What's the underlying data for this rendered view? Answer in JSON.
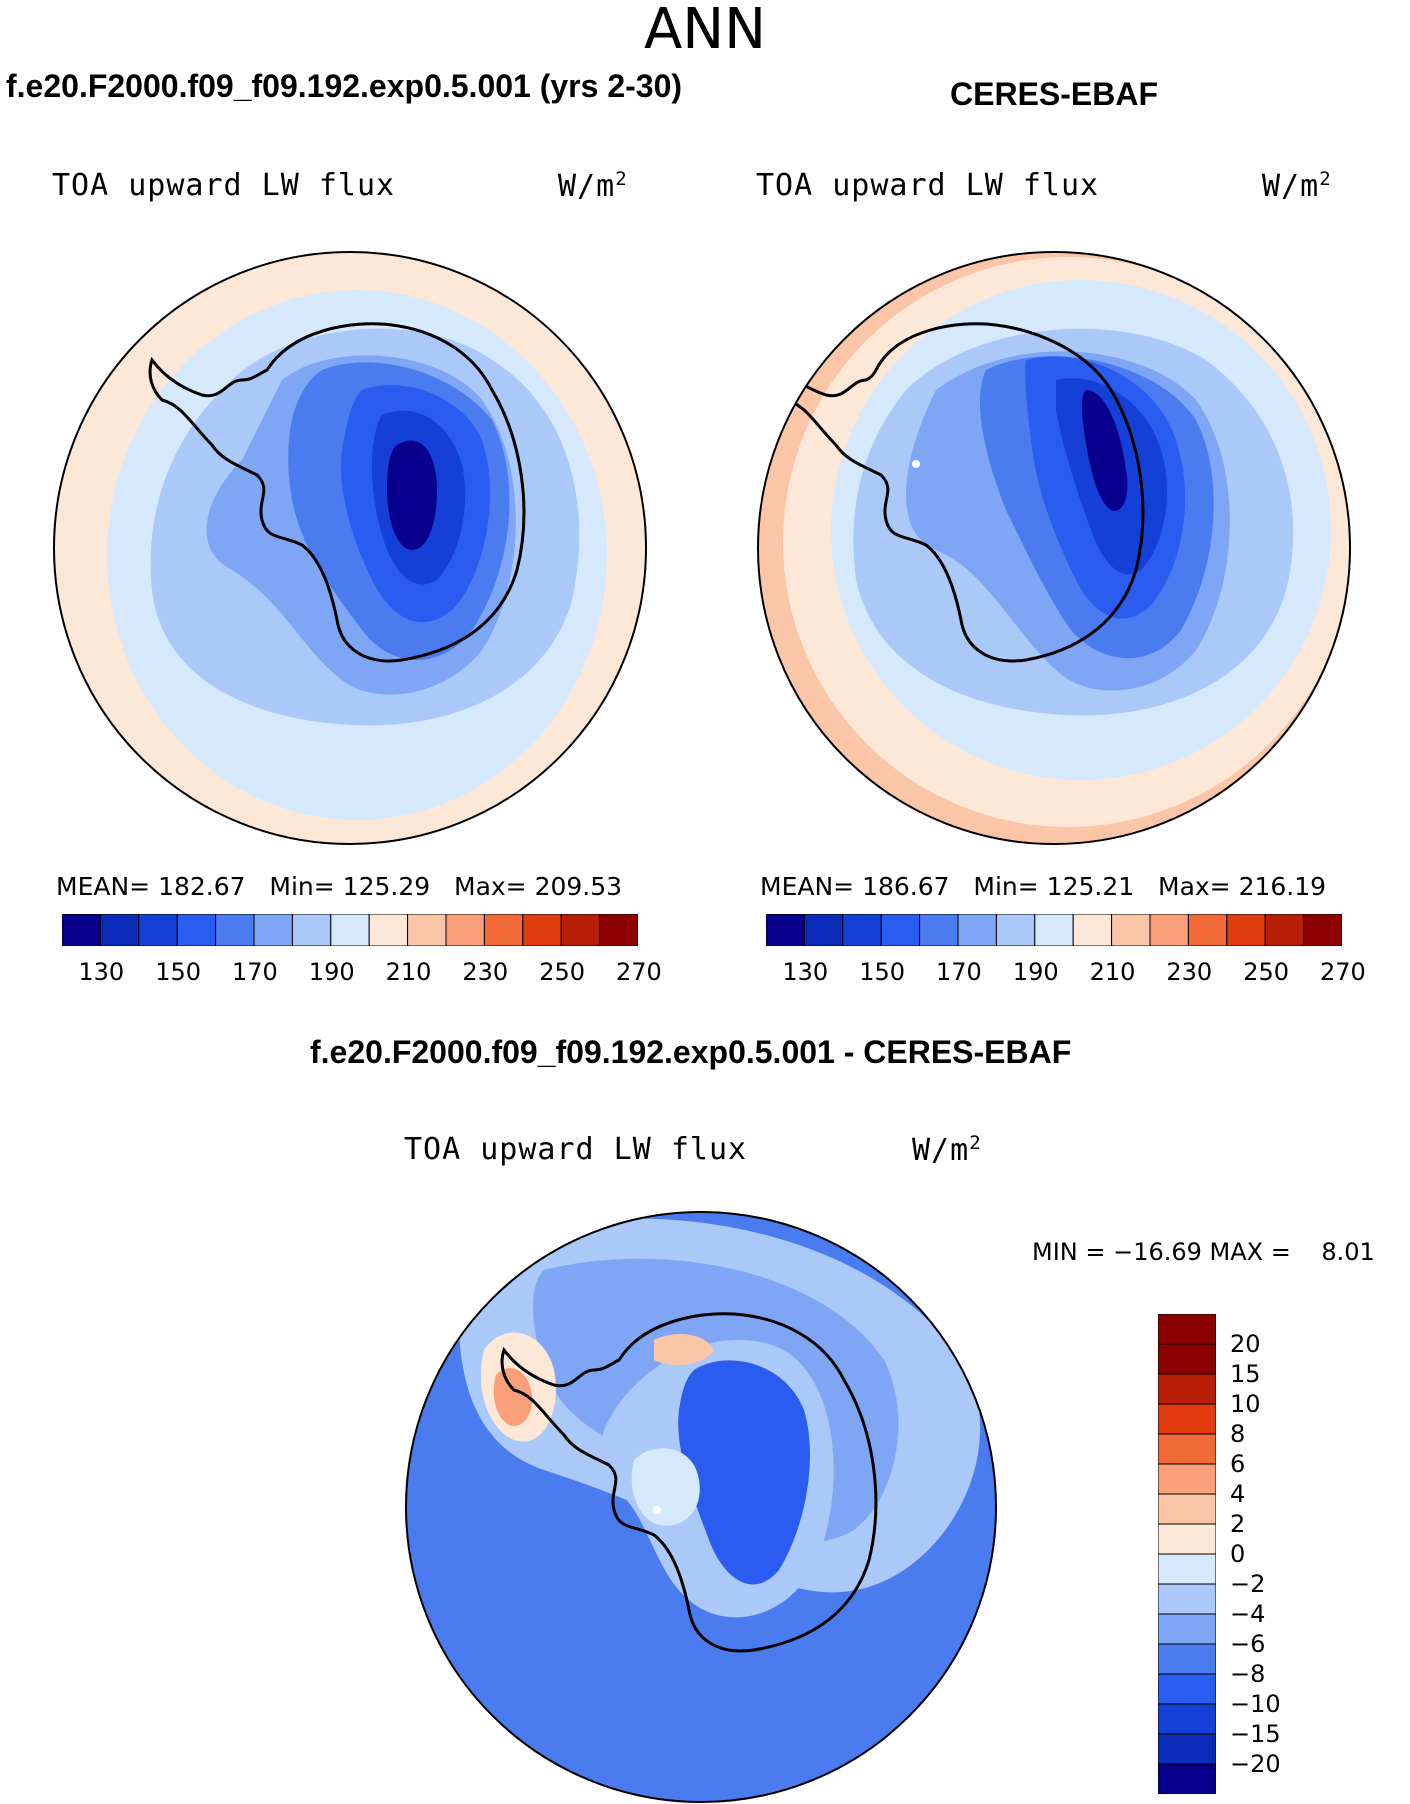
{
  "title": "ANN",
  "palette": {
    "abs": [
      "#08008c",
      "#0a2bb8",
      "#1440d8",
      "#2a5cf0",
      "#4a7cf0",
      "#7ea6f5",
      "#aac8f8",
      "#d6e8fc",
      "#fde8d8",
      "#fbc6a8",
      "#f9a07a",
      "#f26a38",
      "#e03c10",
      "#b81e08",
      "#8c0000"
    ],
    "diff": [
      "#08008c",
      "#0a2bb8",
      "#1440d8",
      "#2a5cf0",
      "#4a7cf0",
      "#7ea6f5",
      "#aac8f8",
      "#d6e8fc",
      "#fde8d8",
      "#fbc6a8",
      "#f9a07a",
      "#f26a38",
      "#e03c10",
      "#b81e08",
      "#8c0000"
    ],
    "land_outline": "#000000"
  },
  "panels": [
    {
      "title": "f.e20.F2000.f09_f09.192.exp0.5.001 (yrs 2-30)",
      "variable": "TOA upward LW flux",
      "units": "W/m",
      "units_exp": "2",
      "stats": {
        "mean_label": "MEAN=",
        "mean": "182.67",
        "min_label": "Min=",
        "min": "125.29",
        "max_label": "Max=",
        "max": "209.53"
      },
      "colorbar_ticks": [
        "130",
        "150",
        "170",
        "190",
        "210",
        "230",
        "250",
        "270"
      ]
    },
    {
      "title": "CERES-EBAF",
      "variable": "TOA upward LW flux",
      "units": "W/m",
      "units_exp": "2",
      "stats": {
        "mean_label": "MEAN=",
        "mean": "186.67",
        "min_label": "Min=",
        "min": "125.21",
        "max_label": "Max=",
        "max": "216.19"
      },
      "colorbar_ticks": [
        "130",
        "150",
        "170",
        "190",
        "210",
        "230",
        "250",
        "270"
      ]
    }
  ],
  "diff_panel": {
    "title": "f.e20.F2000.f09_f09.192.exp0.5.001 - CERES-EBAF",
    "variable": "TOA upward LW flux",
    "units": "W/m",
    "units_exp": "2",
    "minmax": "MIN = −16.69 MAX =    8.01",
    "colorbar_ticks": [
      "20",
      "15",
      "10",
      "8",
      "6",
      "4",
      "2",
      "0",
      "−2",
      "−4",
      "−6",
      "−8",
      "−10",
      "−15",
      "−20"
    ]
  }
}
